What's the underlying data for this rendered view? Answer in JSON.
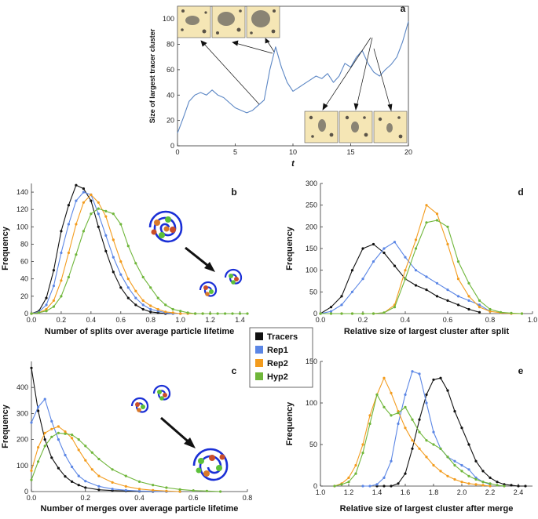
{
  "colors": {
    "Tracers": "#111111",
    "Rep1": "#5b86e5",
    "Rep2": "#f39c1e",
    "Hyp2": "#6fb63a",
    "bluecurve": "#5b86c4"
  },
  "legend": {
    "entries": [
      "Tracers",
      "Rep1",
      "Rep2",
      "Hyp2"
    ]
  },
  "chart_data": [
    {
      "id": "a",
      "type": "line",
      "panel_label": "a",
      "xlabel": "t",
      "ylabel": "Size of largest tracer cluster",
      "xlim": [
        0,
        20
      ],
      "ylim": [
        0,
        110
      ],
      "xticks": [
        0,
        5,
        10,
        15,
        20
      ],
      "yticks": [
        0,
        20,
        40,
        60,
        80,
        100
      ],
      "x": [
        0,
        0.5,
        1,
        1.5,
        2,
        2.5,
        3,
        3.5,
        4,
        4.5,
        5,
        5.5,
        6,
        6.5,
        7,
        7.5,
        8,
        8.5,
        9,
        9.5,
        10,
        10.5,
        11,
        11.5,
        12,
        12.5,
        13,
        13.5,
        14,
        14.5,
        15,
        15.5,
        16,
        16.5,
        17,
        17.5,
        18,
        18.5,
        19,
        19.5,
        20
      ],
      "y": [
        10,
        22,
        35,
        40,
        42,
        40,
        44,
        40,
        38,
        34,
        30,
        28,
        26,
        28,
        32,
        36,
        60,
        78,
        62,
        50,
        43,
        46,
        49,
        52,
        55,
        53,
        57,
        50,
        55,
        65,
        62,
        70,
        75,
        65,
        58,
        55,
        60,
        64,
        70,
        82,
        98
      ]
    },
    {
      "id": "b",
      "type": "line",
      "panel_label": "b",
      "xlabel": "Number of splits over average particle lifetime",
      "ylabel": "Frequency",
      "xlim": [
        0,
        1.45
      ],
      "ylim": [
        0,
        150
      ],
      "xticks": [
        0,
        0.2,
        0.4,
        0.6,
        0.8,
        1.0,
        1.2,
        1.4
      ],
      "yticks": [
        0,
        20,
        40,
        60,
        80,
        100,
        120,
        140
      ],
      "series": [
        {
          "name": "Tracers",
          "x": [
            0,
            0.05,
            0.1,
            0.15,
            0.2,
            0.25,
            0.3,
            0.35,
            0.4,
            0.45,
            0.5,
            0.55,
            0.6,
            0.65,
            0.7,
            0.75,
            0.8,
            0.85,
            0.9,
            0.95,
            1.0
          ],
          "y": [
            0,
            3,
            18,
            50,
            95,
            125,
            148,
            144,
            130,
            100,
            72,
            48,
            30,
            18,
            10,
            5,
            2,
            1,
            0,
            0,
            0
          ]
        },
        {
          "name": "Rep1",
          "x": [
            0,
            0.05,
            0.1,
            0.15,
            0.2,
            0.25,
            0.3,
            0.35,
            0.4,
            0.45,
            0.5,
            0.55,
            0.6,
            0.65,
            0.7,
            0.75,
            0.8,
            0.85,
            0.9,
            0.95,
            1.0,
            1.05,
            1.1
          ],
          "y": [
            0,
            2,
            10,
            32,
            70,
            103,
            130,
            140,
            137,
            115,
            90,
            65,
            45,
            30,
            18,
            10,
            5,
            3,
            1,
            0,
            0,
            0,
            0
          ]
        },
        {
          "name": "Rep2",
          "x": [
            0,
            0.05,
            0.1,
            0.15,
            0.2,
            0.25,
            0.3,
            0.35,
            0.4,
            0.45,
            0.5,
            0.55,
            0.6,
            0.65,
            0.7,
            0.75,
            0.8,
            0.85,
            0.9,
            0.95,
            1.0,
            1.05,
            1.1,
            1.15,
            1.2
          ],
          "y": [
            0,
            1,
            5,
            15,
            38,
            70,
            103,
            128,
            137,
            128,
            112,
            85,
            60,
            40,
            26,
            15,
            9,
            5,
            2,
            1,
            0,
            0,
            0,
            0,
            0
          ]
        },
        {
          "name": "Hyp2",
          "x": [
            0,
            0.05,
            0.1,
            0.15,
            0.2,
            0.25,
            0.3,
            0.35,
            0.4,
            0.45,
            0.5,
            0.55,
            0.6,
            0.65,
            0.7,
            0.75,
            0.8,
            0.85,
            0.9,
            0.95,
            1.0,
            1.05,
            1.1,
            1.15,
            1.2,
            1.25,
            1.3,
            1.35,
            1.4,
            1.45
          ],
          "y": [
            0,
            1,
            3,
            8,
            20,
            42,
            68,
            95,
            115,
            121,
            118,
            115,
            103,
            78,
            58,
            42,
            30,
            18,
            10,
            5,
            3,
            1,
            0,
            0,
            0,
            0,
            0,
            0,
            0,
            0
          ]
        }
      ]
    },
    {
      "id": "c",
      "type": "line",
      "panel_label": "c",
      "xlabel": "Number of merges over average particle lifetime",
      "ylabel": "Frequency",
      "xlim": [
        0,
        0.8
      ],
      "ylim": [
        0,
        500
      ],
      "xticks": [
        0,
        0.2,
        0.4,
        0.6,
        0.8
      ],
      "yticks": [
        0,
        100,
        200,
        300,
        400
      ],
      "series": [
        {
          "name": "Tracers",
          "x": [
            0,
            0.025,
            0.05,
            0.075,
            0.1,
            0.125,
            0.15,
            0.175,
            0.2,
            0.25,
            0.3,
            0.35,
            0.4,
            0.45,
            0.5,
            0.55
          ],
          "y": [
            475,
            310,
            200,
            130,
            90,
            58,
            38,
            25,
            15,
            7,
            4,
            2,
            1,
            0,
            0,
            0
          ]
        },
        {
          "name": "Rep1",
          "x": [
            0,
            0.025,
            0.05,
            0.075,
            0.1,
            0.125,
            0.15,
            0.175,
            0.2,
            0.25,
            0.3,
            0.35,
            0.4,
            0.45,
            0.5,
            0.55
          ],
          "y": [
            265,
            325,
            355,
            270,
            200,
            140,
            95,
            60,
            40,
            20,
            10,
            5,
            2,
            1,
            0,
            0
          ]
        },
        {
          "name": "Rep2",
          "x": [
            0,
            0.025,
            0.05,
            0.075,
            0.1,
            0.125,
            0.15,
            0.175,
            0.2,
            0.225,
            0.25,
            0.3,
            0.35,
            0.4,
            0.45,
            0.5,
            0.55
          ],
          "y": [
            80,
            170,
            225,
            240,
            250,
            230,
            205,
            160,
            120,
            85,
            60,
            35,
            20,
            10,
            5,
            2,
            0
          ]
        },
        {
          "name": "Hyp2",
          "x": [
            0,
            0.025,
            0.05,
            0.075,
            0.1,
            0.125,
            0.15,
            0.175,
            0.2,
            0.225,
            0.25,
            0.3,
            0.35,
            0.4,
            0.45,
            0.5,
            0.55,
            0.6,
            0.65,
            0.7
          ],
          "y": [
            45,
            115,
            175,
            210,
            225,
            222,
            218,
            200,
            175,
            150,
            125,
            85,
            60,
            38,
            25,
            15,
            8,
            4,
            2,
            0
          ]
        }
      ]
    },
    {
      "id": "d",
      "type": "line",
      "panel_label": "d",
      "xlabel": "Relative size of largest cluster after split",
      "ylabel": "Frequency",
      "xlim": [
        0,
        1.0
      ],
      "ylim": [
        0,
        300
      ],
      "xticks": [
        0,
        0.2,
        0.4,
        0.6,
        0.8,
        1.0
      ],
      "yticks": [
        0,
        50,
        100,
        150,
        200,
        250,
        300
      ],
      "series": [
        {
          "name": "Tracers",
          "x": [
            0,
            0.05,
            0.1,
            0.15,
            0.2,
            0.25,
            0.3,
            0.35,
            0.4,
            0.45,
            0.5,
            0.55,
            0.6,
            0.65,
            0.7,
            0.75
          ],
          "y": [
            0,
            15,
            40,
            100,
            150,
            160,
            140,
            110,
            80,
            65,
            55,
            40,
            30,
            20,
            10,
            3
          ]
        },
        {
          "name": "Rep1",
          "x": [
            0,
            0.05,
            0.1,
            0.15,
            0.2,
            0.25,
            0.3,
            0.35,
            0.4,
            0.45,
            0.5,
            0.55,
            0.6,
            0.65,
            0.7,
            0.75,
            0.8
          ],
          "y": [
            0,
            5,
            20,
            50,
            80,
            120,
            150,
            165,
            130,
            100,
            85,
            70,
            55,
            40,
            30,
            20,
            5
          ]
        },
        {
          "name": "Rep2",
          "x": [
            0,
            0.05,
            0.1,
            0.15,
            0.2,
            0.25,
            0.3,
            0.35,
            0.4,
            0.45,
            0.5,
            0.55,
            0.6,
            0.65,
            0.7,
            0.75,
            0.8,
            0.85,
            0.9,
            0.95
          ],
          "y": [
            0,
            0,
            0,
            0,
            0,
            0,
            2,
            20,
            100,
            170,
            250,
            230,
            160,
            80,
            40,
            15,
            5,
            2,
            0,
            0
          ]
        },
        {
          "name": "Hyp2",
          "x": [
            0,
            0.05,
            0.1,
            0.15,
            0.2,
            0.25,
            0.3,
            0.35,
            0.4,
            0.45,
            0.5,
            0.55,
            0.6,
            0.65,
            0.7,
            0.75,
            0.8,
            0.85,
            0.9,
            0.95
          ],
          "y": [
            0,
            0,
            0,
            0,
            0,
            0,
            2,
            15,
            80,
            150,
            210,
            215,
            200,
            120,
            70,
            30,
            10,
            3,
            1,
            0
          ]
        }
      ]
    },
    {
      "id": "e",
      "type": "line",
      "panel_label": "e",
      "xlabel": "Relative size of largest cluster after merge",
      "ylabel": "Frequency",
      "xlim": [
        1.0,
        2.5
      ],
      "ylim": [
        0,
        150
      ],
      "xticks": [
        1.0,
        1.2,
        1.4,
        1.6,
        1.8,
        2.0,
        2.2,
        2.4
      ],
      "yticks": [
        0,
        50,
        100,
        150
      ],
      "series": [
        {
          "name": "Tracers",
          "x": [
            1.4,
            1.45,
            1.5,
            1.55,
            1.6,
            1.65,
            1.7,
            1.75,
            1.8,
            1.85,
            1.9,
            1.95,
            2.0,
            2.05,
            2.1,
            2.15,
            2.2,
            2.25,
            2.3,
            2.35,
            2.4,
            2.45
          ],
          "y": [
            0,
            0,
            0,
            3,
            15,
            45,
            80,
            110,
            128,
            130,
            115,
            90,
            70,
            50,
            30,
            18,
            10,
            5,
            2,
            1,
            0,
            0
          ]
        },
        {
          "name": "Rep1",
          "x": [
            1.3,
            1.35,
            1.4,
            1.45,
            1.5,
            1.55,
            1.6,
            1.65,
            1.7,
            1.75,
            1.8,
            1.85,
            1.9,
            1.95,
            2.0,
            2.05,
            2.1,
            2.15,
            2.2
          ],
          "y": [
            0,
            0,
            2,
            10,
            30,
            75,
            110,
            138,
            135,
            100,
            65,
            45,
            35,
            30,
            25,
            20,
            10,
            5,
            2
          ]
        },
        {
          "name": "Rep2",
          "x": [
            1.1,
            1.15,
            1.2,
            1.25,
            1.3,
            1.35,
            1.4,
            1.45,
            1.5,
            1.55,
            1.6,
            1.65,
            1.7,
            1.75,
            1.8,
            1.85,
            1.9,
            1.95,
            2.0,
            2.05,
            2.1,
            2.15,
            2.2
          ],
          "y": [
            0,
            3,
            10,
            25,
            50,
            85,
            110,
            130,
            112,
            90,
            70,
            55,
            45,
            35,
            25,
            18,
            12,
            8,
            5,
            3,
            2,
            1,
            0
          ]
        },
        {
          "name": "Hyp2",
          "x": [
            1.1,
            1.15,
            1.2,
            1.25,
            1.3,
            1.35,
            1.4,
            1.45,
            1.5,
            1.55,
            1.6,
            1.65,
            1.7,
            1.75,
            1.8,
            1.85,
            1.9,
            1.95,
            2.0,
            2.05,
            2.1,
            2.15,
            2.2,
            2.25,
            2.3
          ],
          "y": [
            0,
            2,
            5,
            15,
            40,
            75,
            110,
            95,
            85,
            88,
            95,
            80,
            65,
            55,
            50,
            45,
            35,
            25,
            18,
            12,
            8,
            5,
            3,
            1,
            0
          ]
        }
      ]
    }
  ]
}
